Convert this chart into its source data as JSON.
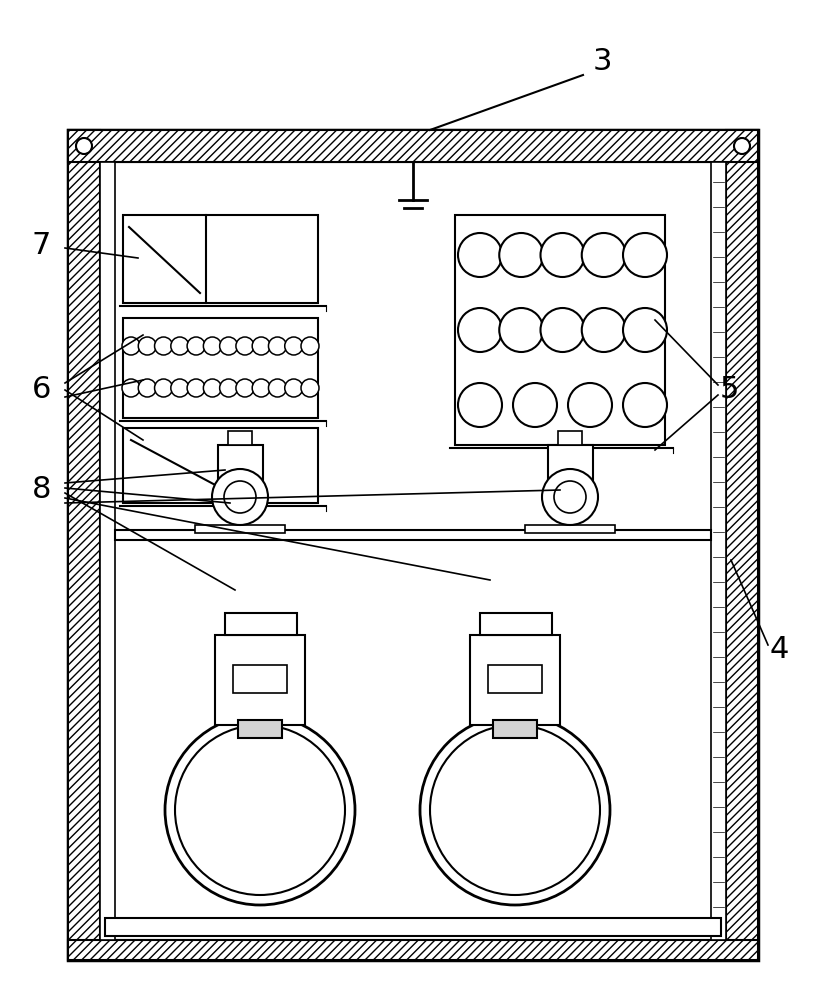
{
  "bg_color": "#ffffff",
  "line_color": "#000000",
  "label_3": "3",
  "label_4": "4",
  "label_5": "5",
  "label_6": "6",
  "label_7": "7",
  "label_8": "8",
  "fig_width": 8.23,
  "fig_height": 10.0
}
